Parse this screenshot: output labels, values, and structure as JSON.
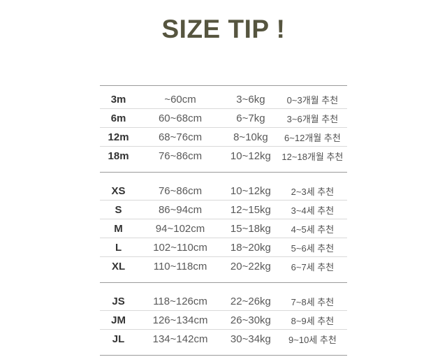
{
  "title": "SIZE TIP !",
  "accent_color": "#56553f",
  "divider_colors": {
    "section_border": "#9a9a9a",
    "row_separator": "#d9d9d9"
  },
  "table": {
    "sections": [
      {
        "name": "baby-months",
        "rows": [
          {
            "size": "3m",
            "height": "~60cm",
            "weight": "3~6kg",
            "age": "0~3개월 추천"
          },
          {
            "size": "6m",
            "height": "60~68cm",
            "weight": "6~7kg",
            "age": "3~6개월 추천"
          },
          {
            "size": "12m",
            "height": "68~76cm",
            "weight": "8~10kg",
            "age": "6~12개월 추천"
          },
          {
            "size": "18m",
            "height": "76~86cm",
            "weight": "10~12kg",
            "age": "12~18개월 추천"
          }
        ]
      },
      {
        "name": "kids-sizes",
        "rows": [
          {
            "size": "XS",
            "height": "76~86cm",
            "weight": "10~12kg",
            "age": "2~3세 추천"
          },
          {
            "size": "S",
            "height": "86~94cm",
            "weight": "12~15kg",
            "age": "3~4세 추천"
          },
          {
            "size": "M",
            "height": "94~102cm",
            "weight": "15~18kg",
            "age": "4~5세 추천"
          },
          {
            "size": "L",
            "height": "102~110cm",
            "weight": "18~20kg",
            "age": "5~6세 추천"
          },
          {
            "size": "XL",
            "height": "110~118cm",
            "weight": "20~22kg",
            "age": "6~7세 추천"
          }
        ]
      },
      {
        "name": "junior-sizes",
        "rows": [
          {
            "size": "JS",
            "height": "118~126cm",
            "weight": "22~26kg",
            "age": "7~8세 추천"
          },
          {
            "size": "JM",
            "height": "126~134cm",
            "weight": "26~30kg",
            "age": "8~9세 추천"
          },
          {
            "size": "JL",
            "height": "134~142cm",
            "weight": "30~34kg",
            "age": "9~10세 추천"
          }
        ]
      }
    ]
  }
}
